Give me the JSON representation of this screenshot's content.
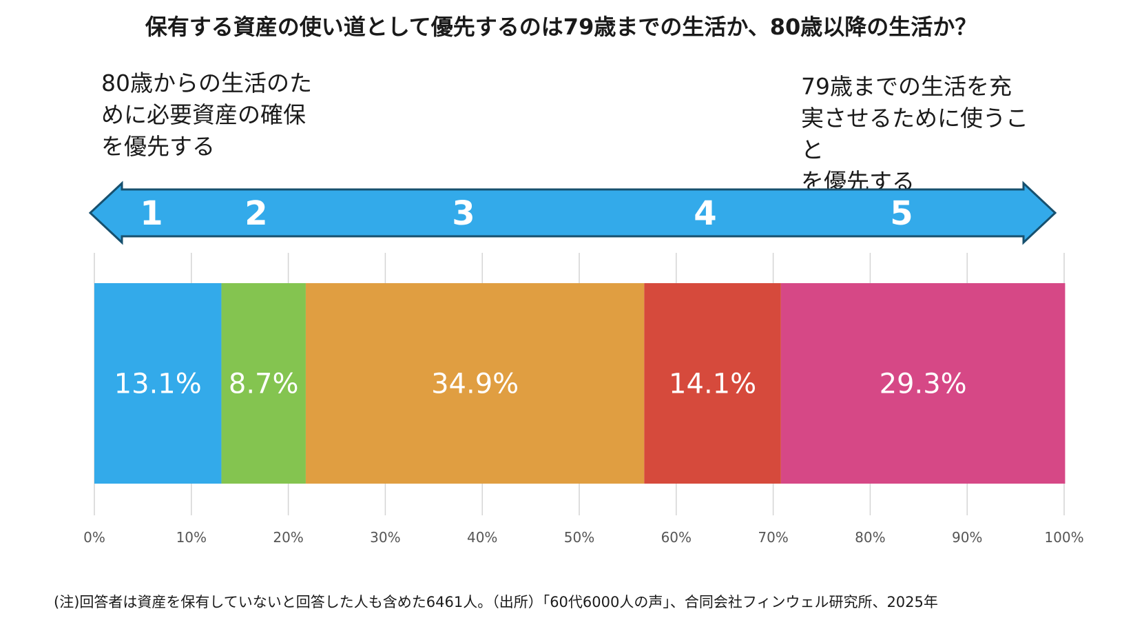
{
  "title": "保有する資産の使い道として優先するのは79歳までの生活か、80歳以降の生活か？",
  "left_label": "80歳からの生活のた\nめに必要資産の確保\nを優先する",
  "right_label": "79歳までの生活を充\n実させるために使うこと\nを優先する",
  "scale_labels": [
    "1",
    "2",
    "3",
    "4",
    "5"
  ],
  "footnote": "(注)回答者は資産を保有していないと回答した人も含めた6461人。（出所）「60代6000人の声」、合同会社フィンウェル研究所、2025年",
  "arrow_color": "#33aaea",
  "chart_data": {
    "type": "bar",
    "orientation": "horizontal",
    "stacked": true,
    "categories": [
      "1",
      "2",
      "3",
      "4",
      "5"
    ],
    "values": [
      13.1,
      8.7,
      34.9,
      14.1,
      29.3
    ],
    "value_labels": [
      "13.1%",
      "8.7%",
      "34.9%",
      "14.1%",
      "29.3%"
    ],
    "colors": [
      "#33aaea",
      "#84c450",
      "#e09e41",
      "#d64a3c",
      "#d64886"
    ],
    "xlim": [
      0,
      100
    ],
    "xticks": [
      "0%",
      "10%",
      "20%",
      "30%",
      "40%",
      "50%",
      "60%",
      "70%",
      "80%",
      "90%",
      "100%"
    ],
    "grid": true
  }
}
